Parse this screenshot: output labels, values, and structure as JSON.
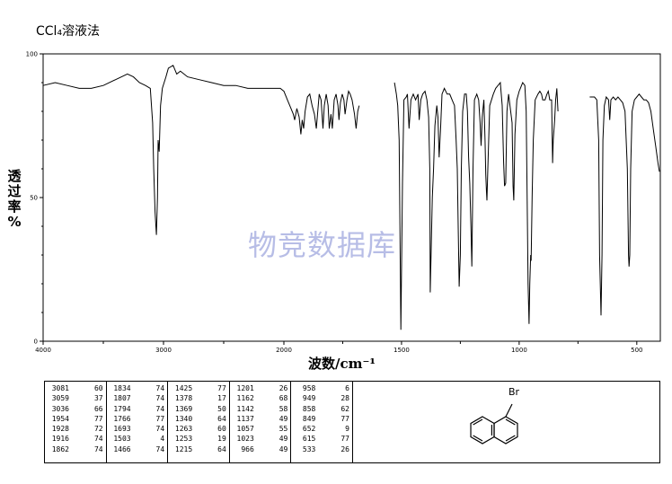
{
  "page_title": "CCl₄溶液法",
  "watermark": "物竞数据库",
  "chart_data": {
    "type": "line",
    "title": "CCl₄溶液法",
    "xlabel": "波数/cm⁻¹",
    "ylabel": "透过率%",
    "ylabel_chars": [
      "透",
      "过",
      "率",
      "%"
    ],
    "xlim": [
      4000,
      400
    ],
    "ylim": [
      0,
      100
    ],
    "x_ticks": [
      4000,
      3000,
      2000,
      1500,
      1000,
      500
    ],
    "y_ticks": [
      0,
      50,
      100
    ],
    "x_tick_labels": [
      "4000",
      "3000",
      "2000",
      "1500",
      "1000",
      "500"
    ],
    "y_tick_labels": [
      "0",
      "50",
      "100"
    ],
    "grid": false,
    "series": [
      {
        "segments": [
          [
            [
              4000,
              89
            ],
            [
              3900,
              90
            ],
            [
              3800,
              89
            ],
            [
              3700,
              88
            ],
            [
              3600,
              88
            ],
            [
              3500,
              89
            ],
            [
              3400,
              91
            ],
            [
              3300,
              93
            ],
            [
              3250,
              92
            ],
            [
              3200,
              90
            ],
            [
              3150,
              89
            ],
            [
              3110,
              88
            ],
            [
              3090,
              76
            ],
            [
              3081,
              60
            ],
            [
              3070,
              45
            ],
            [
              3059,
              37
            ],
            [
              3050,
              50
            ],
            [
              3045,
              70
            ],
            [
              3036,
              66
            ],
            [
              3025,
              82
            ],
            [
              3010,
              88
            ],
            [
              2980,
              92
            ],
            [
              2960,
              95
            ],
            [
              2920,
              96
            ],
            [
              2890,
              93
            ],
            [
              2860,
              94
            ],
            [
              2800,
              92
            ],
            [
              2700,
              91
            ],
            [
              2600,
              90
            ],
            [
              2500,
              89
            ],
            [
              2400,
              89
            ],
            [
              2300,
              88
            ],
            [
              2200,
              88
            ],
            [
              2100,
              88
            ],
            [
              2030,
              88
            ],
            [
              2000,
              87
            ],
            [
              1985,
              84
            ],
            [
              1970,
              81
            ],
            [
              1960,
              79
            ],
            [
              1954,
              77
            ],
            [
              1945,
              81
            ],
            [
              1935,
              78
            ],
            [
              1928,
              72
            ],
            [
              1922,
              77
            ],
            [
              1916,
              74
            ],
            [
              1910,
              80
            ],
            [
              1900,
              85
            ],
            [
              1890,
              86
            ],
            [
              1880,
              82
            ],
            [
              1870,
              79
            ],
            [
              1862,
              74
            ],
            [
              1856,
              80
            ],
            [
              1850,
              86
            ],
            [
              1842,
              84
            ],
            [
              1834,
              74
            ],
            [
              1828,
              82
            ],
            [
              1820,
              86
            ],
            [
              1812,
              82
            ],
            [
              1807,
              74
            ],
            [
              1800,
              79
            ],
            [
              1794,
              74
            ],
            [
              1786,
              84
            ],
            [
              1778,
              86
            ],
            [
              1770,
              82
            ],
            [
              1766,
              77
            ],
            [
              1760,
              83
            ],
            [
              1752,
              86
            ],
            [
              1745,
              84
            ],
            [
              1740,
              79
            ],
            [
              1732,
              84
            ],
            [
              1725,
              87
            ],
            [
              1718,
              86
            ],
            [
              1710,
              84
            ],
            [
              1700,
              79
            ],
            [
              1693,
              74
            ],
            [
              1686,
              80
            ],
            [
              1680,
              82
            ]
          ],
          [
            [
              1530,
              90
            ],
            [
              1522,
              86
            ],
            [
              1516,
              82
            ],
            [
              1510,
              70
            ],
            [
              1503,
              4
            ],
            [
              1496,
              55
            ],
            [
              1490,
              84
            ],
            [
              1480,
              85
            ],
            [
              1475,
              86
            ],
            [
              1468,
              74
            ],
            [
              1460,
              84
            ],
            [
              1450,
              86
            ],
            [
              1440,
              84
            ],
            [
              1430,
              86
            ],
            [
              1425,
              77
            ],
            [
              1418,
              84
            ],
            [
              1410,
              86
            ],
            [
              1400,
              87
            ],
            [
              1392,
              84
            ],
            [
              1385,
              78
            ],
            [
              1380,
              60
            ],
            [
              1378,
              17
            ],
            [
              1372,
              40
            ],
            [
              1369,
              50
            ],
            [
              1364,
              60
            ],
            [
              1358,
              75
            ],
            [
              1350,
              82
            ],
            [
              1345,
              78
            ],
            [
              1340,
              64
            ],
            [
              1334,
              74
            ],
            [
              1328,
              86
            ],
            [
              1318,
              88
            ],
            [
              1306,
              86
            ],
            [
              1295,
              86
            ],
            [
              1285,
              84
            ],
            [
              1275,
              82
            ],
            [
              1268,
              70
            ],
            [
              1263,
              60
            ],
            [
              1259,
              40
            ],
            [
              1255,
              19
            ],
            [
              1250,
              30
            ],
            [
              1246,
              60
            ],
            [
              1240,
              80
            ],
            [
              1232,
              86
            ],
            [
              1225,
              86
            ],
            [
              1220,
              80
            ],
            [
              1215,
              64
            ],
            [
              1210,
              55
            ],
            [
              1205,
              40
            ],
            [
              1201,
              26
            ],
            [
              1196,
              60
            ],
            [
              1190,
              84
            ],
            [
              1180,
              86
            ],
            [
              1172,
              84
            ],
            [
              1166,
              76
            ],
            [
              1162,
              68
            ],
            [
              1157,
              78
            ],
            [
              1150,
              84
            ],
            [
              1145,
              70
            ],
            [
              1142,
              58
            ],
            [
              1139,
              52
            ],
            [
              1137,
              49
            ],
            [
              1133,
              60
            ],
            [
              1125,
              82
            ],
            [
              1110,
              86
            ],
            [
              1100,
              88
            ],
            [
              1090,
              89
            ],
            [
              1080,
              90
            ],
            [
              1072,
              82
            ],
            [
              1066,
              62
            ],
            [
              1062,
              54
            ],
            [
              1057,
              55
            ],
            [
              1052,
              80
            ],
            [
              1045,
              86
            ],
            [
              1030,
              76
            ],
            [
              1026,
              54
            ],
            [
              1023,
              49
            ],
            [
              1018,
              72
            ],
            [
              1010,
              84
            ],
            [
              1000,
              87
            ],
            [
              995,
              88
            ],
            [
              990,
              89
            ],
            [
              985,
              90
            ],
            [
              976,
              89
            ],
            [
              970,
              80
            ],
            [
              966,
              49
            ],
            [
              962,
              20
            ],
            [
              958,
              6
            ],
            [
              955,
              20
            ],
            [
              951,
              30
            ],
            [
              949,
              28
            ],
            [
              945,
              50
            ],
            [
              940,
              70
            ],
            [
              932,
              84
            ],
            [
              920,
              86
            ],
            [
              912,
              87
            ],
            [
              905,
              86
            ],
            [
              900,
              84
            ],
            [
              890,
              84
            ],
            [
              882,
              86
            ],
            [
              876,
              87
            ],
            [
              870,
              84
            ],
            [
              862,
              84
            ],
            [
              858,
              62
            ],
            [
              855,
              70
            ],
            [
              849,
              77
            ],
            [
              845,
              84
            ],
            [
              840,
              88
            ],
            [
              835,
              80
            ]
          ],
          [
            [
              700,
              85
            ],
            [
              690,
              85
            ],
            [
              680,
              85
            ],
            [
              670,
              84
            ],
            [
              662,
              70
            ],
            [
              658,
              30
            ],
            [
              652,
              9
            ],
            [
              648,
              30
            ],
            [
              644,
              70
            ],
            [
              638,
              82
            ],
            [
              630,
              85
            ],
            [
              620,
              84
            ],
            [
              615,
              77
            ],
            [
              610,
              84
            ],
            [
              600,
              85
            ],
            [
              590,
              84
            ],
            [
              580,
              85
            ],
            [
              570,
              84
            ],
            [
              560,
              83
            ],
            [
              550,
              80
            ],
            [
              540,
              60
            ],
            [
              535,
              30
            ],
            [
              533,
              26
            ],
            [
              530,
              30
            ],
            [
              526,
              60
            ],
            [
              520,
              80
            ],
            [
              510,
              84
            ],
            [
              500,
              85
            ],
            [
              490,
              86
            ],
            [
              480,
              85
            ],
            [
              470,
              84
            ],
            [
              460,
              84
            ],
            [
              450,
              83
            ],
            [
              440,
              80
            ],
            [
              430,
              74
            ],
            [
              420,
              68
            ],
            [
              410,
              62
            ],
            [
              404,
              59
            ]
          ]
        ]
      }
    ]
  },
  "peak_table": {
    "columns": [
      [
        [
          "3081",
          "60"
        ],
        [
          "3059",
          "37"
        ],
        [
          "3036",
          "66"
        ],
        [
          "1954",
          "77"
        ],
        [
          "1928",
          "72"
        ],
        [
          "1916",
          "74"
        ],
        [
          "1862",
          "74"
        ]
      ],
      [
        [
          "1834",
          "74"
        ],
        [
          "1807",
          "74"
        ],
        [
          "1794",
          "74"
        ],
        [
          "1766",
          "77"
        ],
        [
          "1693",
          "74"
        ],
        [
          "1503",
          "4"
        ],
        [
          "1466",
          "74"
        ]
      ],
      [
        [
          "1425",
          "77"
        ],
        [
          "1378",
          "17"
        ],
        [
          "1369",
          "50"
        ],
        [
          "1340",
          "64"
        ],
        [
          "1263",
          "60"
        ],
        [
          "1253",
          "19"
        ],
        [
          "1215",
          "64"
        ]
      ],
      [
        [
          "1201",
          "26"
        ],
        [
          "1162",
          "68"
        ],
        [
          "1142",
          "58"
        ],
        [
          "1137",
          "49"
        ],
        [
          "1057",
          "55"
        ],
        [
          "1023",
          "49"
        ],
        [
          "966",
          "49"
        ]
      ],
      [
        [
          "958",
          "6"
        ],
        [
          "949",
          "28"
        ],
        [
          "858",
          "62"
        ],
        [
          "849",
          "77"
        ],
        [
          "652",
          "9"
        ],
        [
          "615",
          "77"
        ],
        [
          "533",
          "26"
        ]
      ]
    ]
  },
  "structure": {
    "substituent": "Br"
  }
}
